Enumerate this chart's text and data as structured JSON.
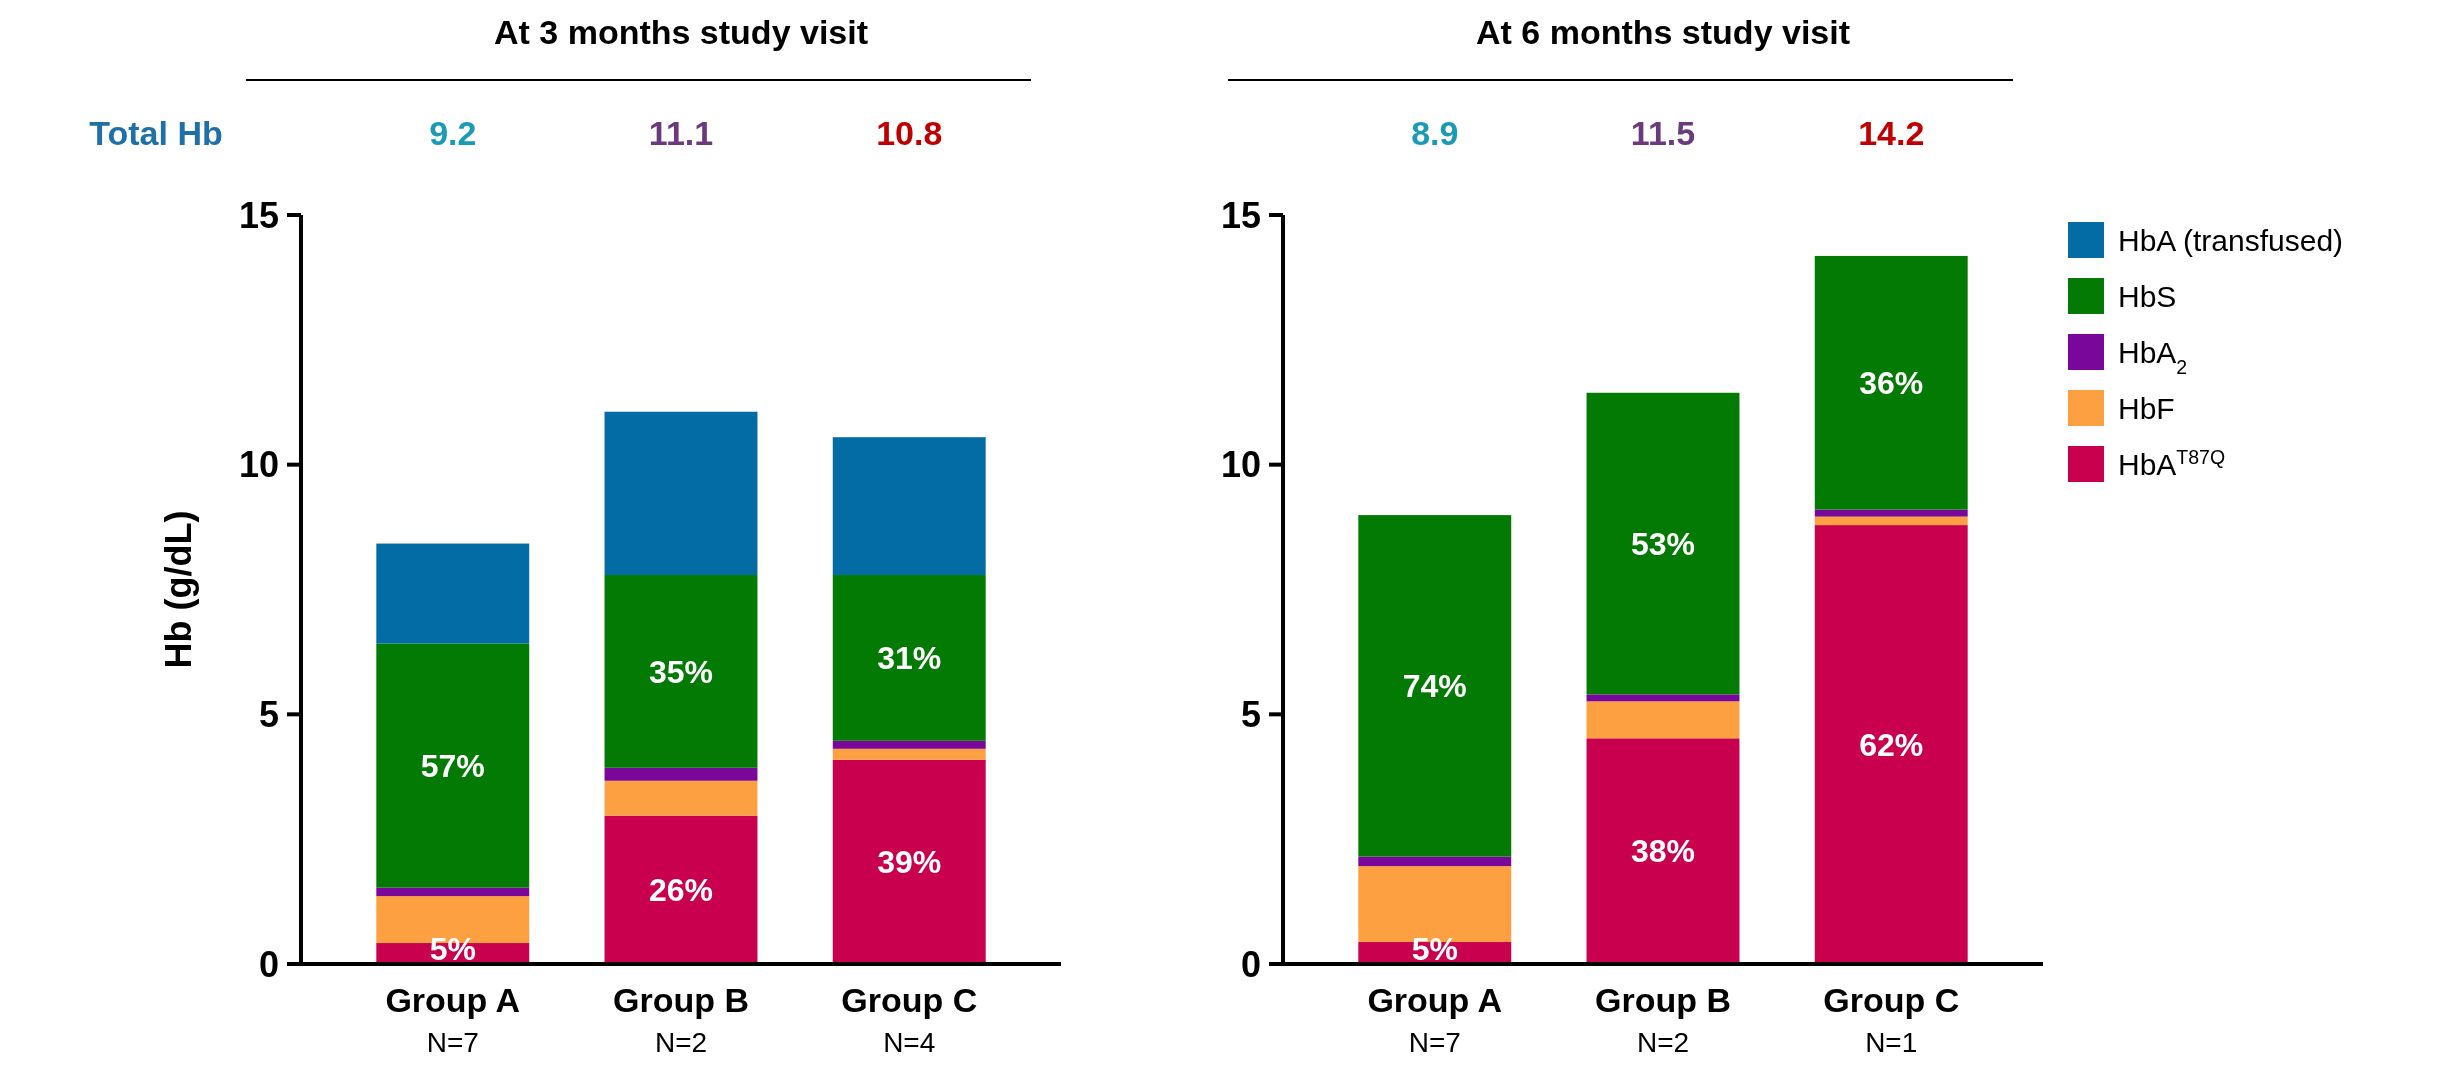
{
  "chart_data": [
    {
      "type": "bar",
      "title": "At 3 months study visit",
      "ylabel": "Hb (g/dL)",
      "categories": [
        "Group A\nN=7",
        "Group B\nN=2",
        "Group C\nN=4"
      ],
      "stacked": true,
      "ylim": [
        0,
        15
      ],
      "yticks": [
        0,
        5,
        10,
        15
      ],
      "legend": false,
      "annotations": [
        "Total Hb",
        "9.2",
        "11.1",
        "10.8",
        "5%",
        "26%",
        "39%",
        "57%",
        "35%",
        "31%"
      ],
      "series": [
        {
          "color": "#c8004e",
          "values": [
            0.42,
            2.97,
            4.09
          ]
        },
        {
          "color": "#fca042",
          "values": [
            0.94,
            0.7,
            0.22
          ]
        },
        {
          "color": "#78079a",
          "values": [
            0.17,
            0.26,
            0.16
          ]
        },
        {
          "color": "#037a04",
          "values": [
            4.89,
            3.86,
            3.32
          ]
        },
        {
          "color": "#036ca4",
          "values": [
            2.0,
            3.27,
            2.76
          ]
        }
      ]
    },
    {
      "type": "bar",
      "title": "At 6 months study visit",
      "categories": [
        "Group A\nN=7",
        "Group B\nN=2",
        "Group C\nN=1"
      ],
      "stacked": true,
      "ylim": [
        0,
        15
      ],
      "yticks": [
        0,
        5,
        10,
        15
      ],
      "legend": "right",
      "annotations": [
        "8.9",
        "11.5",
        "14.2",
        "5%",
        "38%",
        "62%",
        "74%",
        "53%",
        "36%"
      ],
      "series": [
        {
          "name": "HbA$^{T87Q}$",
          "color": "#c8004e",
          "values": [
            0.44,
            4.52,
            8.79
          ]
        },
        {
          "name": "HbF",
          "color": "#fca042",
          "values": [
            1.52,
            0.74,
            0.17
          ]
        },
        {
          "name": "HbA$_{2}$",
          "color": "#78079a",
          "values": [
            0.19,
            0.14,
            0.14
          ]
        },
        {
          "name": "HbS",
          "color": "#037a04",
          "values": [
            6.84,
            6.04,
            5.08
          ]
        },
        {
          "name": "HbA (transfused)",
          "color": "#036ca4",
          "values": [
            null,
            null,
            null
          ]
        }
      ]
    }
  ]
}
